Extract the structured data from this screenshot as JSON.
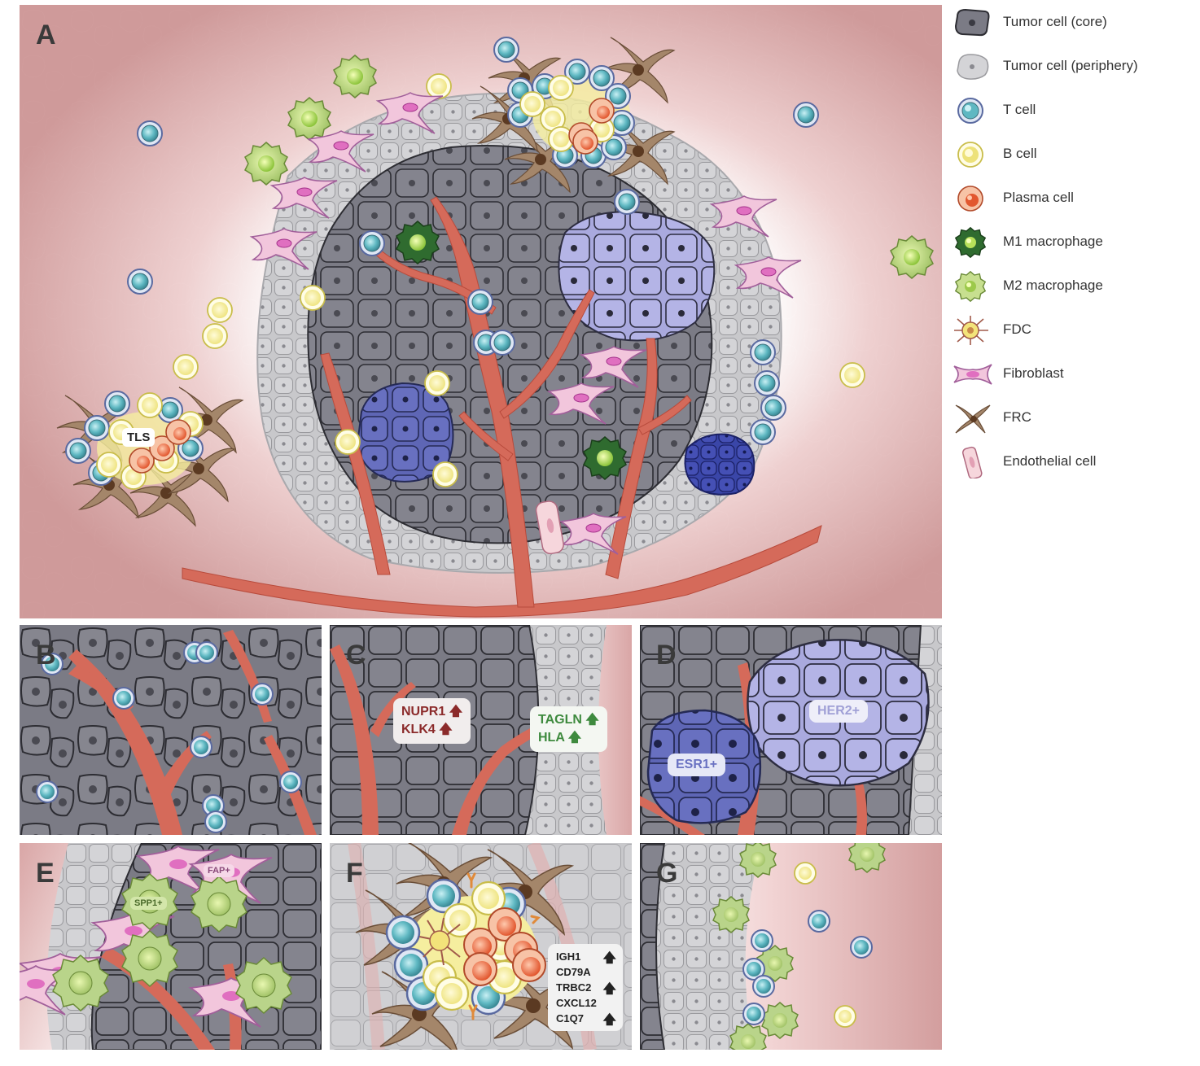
{
  "panels": {
    "a": {
      "label": "A",
      "tls_label": "TLS"
    },
    "b": {
      "label": "B"
    },
    "c": {
      "label": "C",
      "core_genes": [
        "NUPR1",
        "KLK4"
      ],
      "periphery_genes": [
        "TAGLN",
        "HLA"
      ]
    },
    "d": {
      "label": "D",
      "subclone_left": "ESR1+",
      "subclone_right": "HER2+"
    },
    "e": {
      "label": "E",
      "fibroblast_marker": "FAP+",
      "macrophage_marker": "SPP1+"
    },
    "f": {
      "label": "F",
      "genes": [
        "IGH1",
        "CD79A",
        "TRBC2",
        "CXCL12",
        "C1Q7"
      ]
    },
    "g": {
      "label": "G"
    }
  },
  "legend": [
    {
      "icon": "tumor-core-cell-icon",
      "label": "Tumor cell (core)"
    },
    {
      "icon": "tumor-periphery-cell-icon",
      "label": "Tumor cell (periphery)"
    },
    {
      "icon": "t-cell-icon",
      "label": "T cell"
    },
    {
      "icon": "b-cell-icon",
      "label": "B cell"
    },
    {
      "icon": "plasma-cell-icon",
      "label": "Plasma cell"
    },
    {
      "icon": "m1-macrophage-icon",
      "label": "M1 macrophage"
    },
    {
      "icon": "m2-macrophage-icon",
      "label": "M2 macrophage"
    },
    {
      "icon": "fdc-icon",
      "label": "FDC"
    },
    {
      "icon": "fibroblast-icon",
      "label": "Fibroblast"
    },
    {
      "icon": "frc-icon",
      "label": "FRC"
    },
    {
      "icon": "endothelial-cell-icon",
      "label": "Endothelial cell"
    }
  ],
  "colors": {
    "stroma": "#cf9a9a",
    "tumor_core": "#7b7b85",
    "tumor_periphery": "#cfcfd2",
    "vessel": "#d56a5a",
    "t_cell": "#5fb8c2",
    "b_cell": "#f3ee9a",
    "plasma_cell": "#e8643a",
    "m1_macrophage": "#2f6b2f",
    "m2_macrophage": "#a9c878",
    "fibroblast": "#f2c6dc",
    "frc": "#8a6a50",
    "her2_subclone": "#a9a9de",
    "esr1_subclone": "#5e66b5",
    "up_core": "#8b2a2a",
    "up_periphery": "#3e8a3e"
  }
}
